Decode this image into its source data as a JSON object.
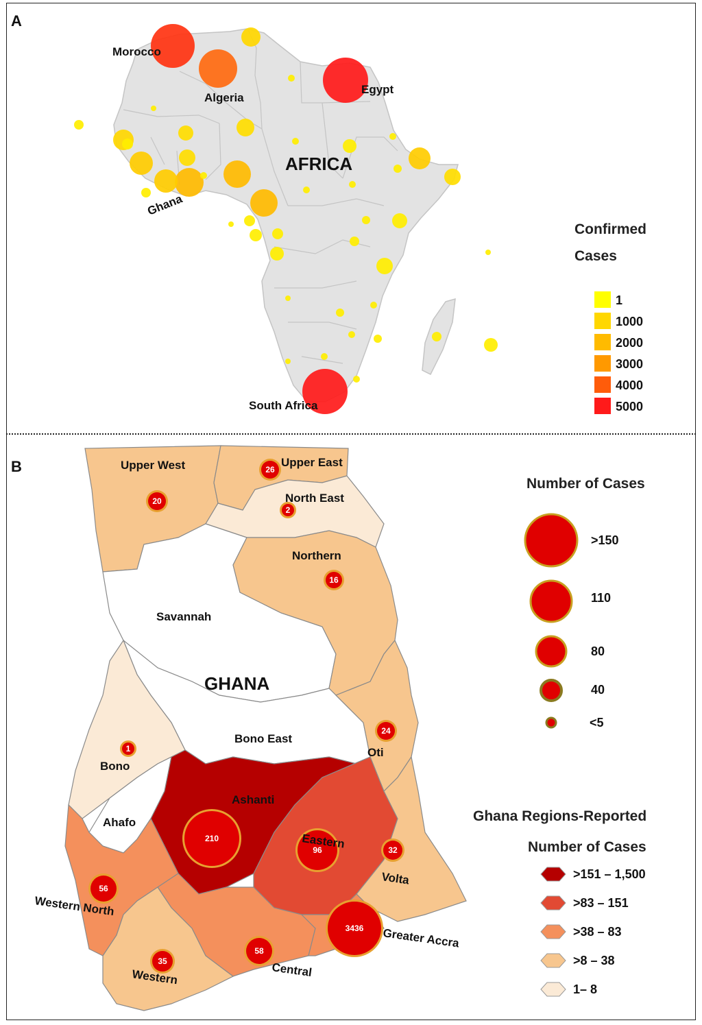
{
  "panel_a": {
    "letter": "A",
    "title": "AFRICA",
    "country_labels": {
      "morocco": "Morocco",
      "algeria": "Algeria",
      "egypt": "Egypt",
      "ghana": "Ghana",
      "south_africa": "South Africa"
    },
    "legend": {
      "title_line1": "Confirmed",
      "title_line2": "Cases",
      "items": [
        {
          "label": "1",
          "color": "#ffff00"
        },
        {
          "label": "1000",
          "color": "#ffd700"
        },
        {
          "label": "2000",
          "color": "#ffbb00"
        },
        {
          "label": "3000",
          "color": "#ff9900"
        },
        {
          "label": "4000",
          "color": "#ff5c0a"
        },
        {
          "label": "5000",
          "color": "#ff1a1a"
        }
      ]
    }
  },
  "panel_b": {
    "letter": "B",
    "title": "GHANA",
    "regions": {
      "upper_west": {
        "name": "Upper West",
        "cases": "20"
      },
      "upper_east": {
        "name": "Upper East",
        "cases": "26"
      },
      "north_east": {
        "name": "North East",
        "cases": "2"
      },
      "northern": {
        "name": "Northern",
        "cases": "16"
      },
      "savannah": {
        "name": "Savannah"
      },
      "bono_east": {
        "name": "Bono East"
      },
      "bono": {
        "name": "Bono",
        "cases": "1"
      },
      "oti": {
        "name": "Oti",
        "cases": "24"
      },
      "ahafo": {
        "name": "Ahafo"
      },
      "ashanti": {
        "name": "Ashanti",
        "cases": "210"
      },
      "eastern": {
        "name": "Eastern",
        "cases": "96"
      },
      "volta": {
        "name": "Volta",
        "cases": "32"
      },
      "western_north": {
        "name": "Western North",
        "cases": "56"
      },
      "greater_accra": {
        "name": "Greater Accra",
        "cases": "3436"
      },
      "central": {
        "name": "Central",
        "cases": "58"
      },
      "western": {
        "name": "Western",
        "cases": "35"
      }
    },
    "size_legend": {
      "title": "Number of Cases",
      "items": [
        ">150",
        "110",
        "80",
        "40",
        "<5"
      ]
    },
    "color_legend": {
      "title_line1": "Ghana Regions-Reported",
      "title_line2": "Number of Cases",
      "items": [
        {
          "label": ">151 – 1,500",
          "color": "#b50000"
        },
        {
          "label": ">83 – 151",
          "color": "#e24a33"
        },
        {
          "label": ">38 – 83",
          "color": "#f4905c"
        },
        {
          "label": ">8 – 38",
          "color": "#f7c68e"
        },
        {
          "label": "1– 8",
          "color": "#fbead6"
        }
      ]
    }
  }
}
